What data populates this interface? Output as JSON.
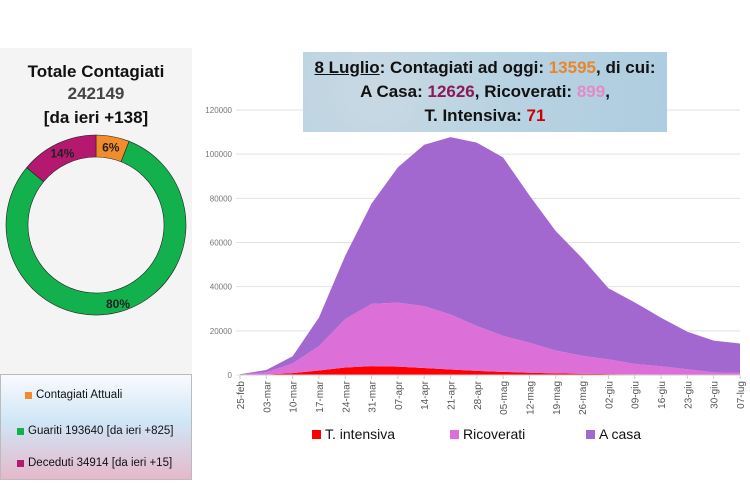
{
  "left_panel": {
    "title": "Totale Contagiati",
    "total": "242149",
    "delta": "[da ieri +138]",
    "donut": [
      {
        "label": "6%",
        "value": 6,
        "color": "#f28b2a"
      },
      {
        "label": "80%",
        "value": 80,
        "color": "#12b14e"
      },
      {
        "label": "14%",
        "value": 14,
        "color": "#b5196f"
      }
    ],
    "legend": [
      {
        "label": "Contagiati Attuali",
        "color": "#f28b2a"
      },
      {
        "label": "Guariti 193640 [da ieri +825]",
        "color": "#12b14e"
      },
      {
        "label": "Deceduti 34914 [da ieri +15]",
        "color": "#b5196f"
      }
    ]
  },
  "header": {
    "date": "8 Luglio",
    "line1_text": ": Contagiati ad oggi: ",
    "current": "13595",
    "line1_end": ", di cui:",
    "home_label": "A Casa: ",
    "home": "12626",
    "hosp_label": ", Ricoverati: ",
    "hosp": "899",
    "hosp_end": ",",
    "icu_label": "T. Intensiva: ",
    "icu": "71",
    "colors": {
      "current": "#e8862a",
      "home": "#8a1a5a",
      "hosp": "#e48ac8",
      "icu": "#cc0000"
    }
  },
  "chart_data": {
    "type": "area",
    "stacked": true,
    "categories": [
      "25-feb",
      "03-mar",
      "10-mar",
      "17-mar",
      "24-mar",
      "31-mar",
      "07-apr",
      "14-apr",
      "21-apr",
      "28-apr",
      "05-mag",
      "12-mag",
      "19-mag",
      "26-mag",
      "02-giu",
      "09-giu",
      "16-giu",
      "23-giu",
      "30-giu",
      "07-lug"
    ],
    "series": [
      {
        "name": "T. intensiva",
        "color": "#ff0000",
        "values": [
          35,
          229,
          877,
          2060,
          3396,
          4023,
          3792,
          3186,
          2471,
          1863,
          1427,
          999,
          716,
          541,
          408,
          283,
          207,
          127,
          93,
          71
        ]
      },
      {
        "name": "Ricoverati",
        "color": "#dc6fd8",
        "values": [
          101,
          1034,
          4316,
          11025,
          21937,
          28192,
          28976,
          28011,
          24906,
          20353,
          16270,
          13618,
          10400,
          8185,
          6680,
          4729,
          3747,
          2474,
          1089,
          1010
        ]
      },
      {
        "name": "A casa",
        "color": "#a268cf",
        "values": [
          186,
          1000,
          3321,
          12977,
          28697,
          45420,
          61299,
          73094,
          80332,
          82989,
          80770,
          66649,
          54013,
          44216,
          32209,
          27860,
          21955,
          16972,
          14381,
          13161
        ]
      }
    ],
    "yticks": [
      "0",
      "20000",
      "40000",
      "60000",
      "80000",
      "100000",
      "120000"
    ],
    "ylim": [
      0,
      120000
    ],
    "grid": true,
    "legend_position": "bottom"
  }
}
